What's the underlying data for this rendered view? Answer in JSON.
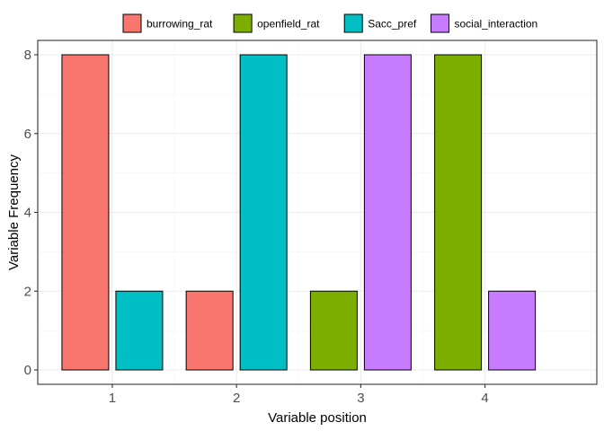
{
  "chart_data": {
    "type": "bar",
    "xlabel": "Variable position",
    "ylabel": "Variable Frequency",
    "categories": [
      "1",
      "2",
      "3",
      "4"
    ],
    "ylim": [
      0,
      8
    ],
    "y_ticks": [
      0,
      2,
      4,
      6,
      8
    ],
    "grid": true,
    "legend_position": "top",
    "series": [
      {
        "name": "burrowing_rat",
        "color": "#F8766D"
      },
      {
        "name": "openfield_rat",
        "color": "#7CAE00"
      },
      {
        "name": "Sacc_pref",
        "color": "#00BFC4"
      },
      {
        "name": "social_interaction",
        "color": "#C77CFF"
      }
    ],
    "bars": [
      {
        "category": "1",
        "series": "burrowing_rat",
        "value": 8
      },
      {
        "category": "1",
        "series": "Sacc_pref",
        "value": 2
      },
      {
        "category": "2",
        "series": "burrowing_rat",
        "value": 2
      },
      {
        "category": "2",
        "series": "Sacc_pref",
        "value": 8
      },
      {
        "category": "3",
        "series": "openfield_rat",
        "value": 2
      },
      {
        "category": "3",
        "series": "social_interaction",
        "value": 8
      },
      {
        "category": "4",
        "series": "openfield_rat",
        "value": 8
      },
      {
        "category": "4",
        "series": "social_interaction",
        "value": 2
      }
    ]
  }
}
